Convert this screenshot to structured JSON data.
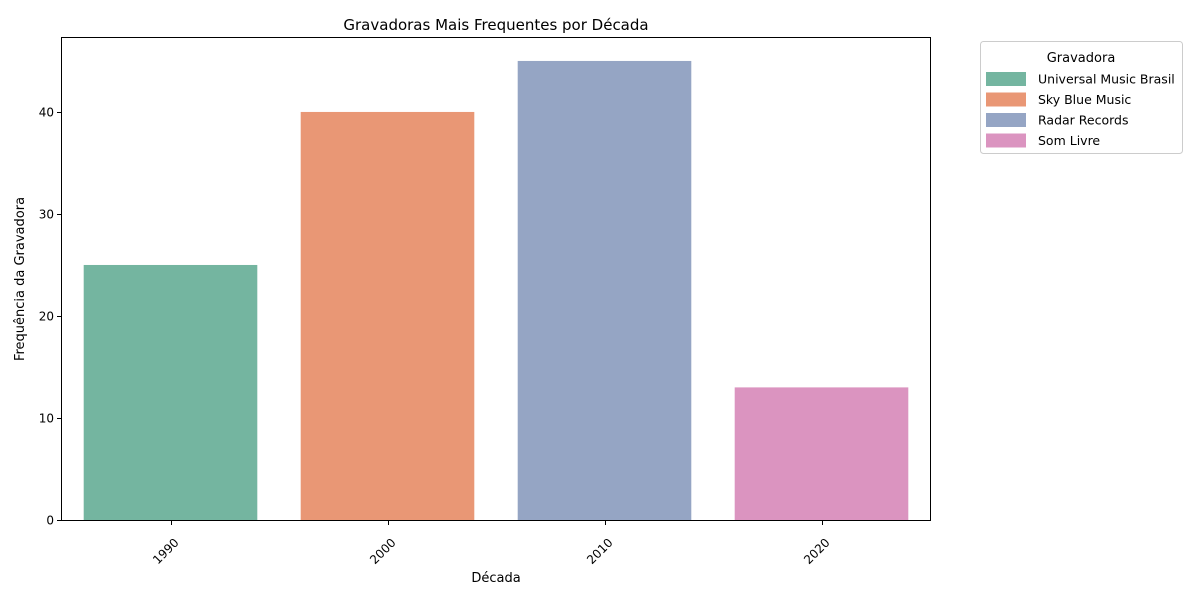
{
  "chart_data": {
    "type": "bar",
    "title": "Gravadoras Mais Frequentes por Década",
    "xlabel": "Década",
    "ylabel": "Frequência da Gravadora",
    "categories": [
      "1990",
      "2000",
      "2010",
      "2020"
    ],
    "values": [
      25,
      40,
      45,
      13
    ],
    "labels": [
      "Universal Music Brasil",
      "Sky Blue Music",
      "Radar Records",
      "Som Livre"
    ],
    "colors": [
      "#74b5a0",
      "#e99775",
      "#95a5c4",
      "#db94c0"
    ],
    "ylim": [
      0,
      47.25
    ],
    "yticks": [
      0,
      10,
      20,
      30,
      40
    ],
    "grid": false,
    "legend": {
      "title": "Gravadora",
      "placement": "outside-top-right",
      "entries": [
        "Universal Music Brasil",
        "Sky Blue Music",
        "Radar Records",
        "Som Livre"
      ]
    }
  }
}
